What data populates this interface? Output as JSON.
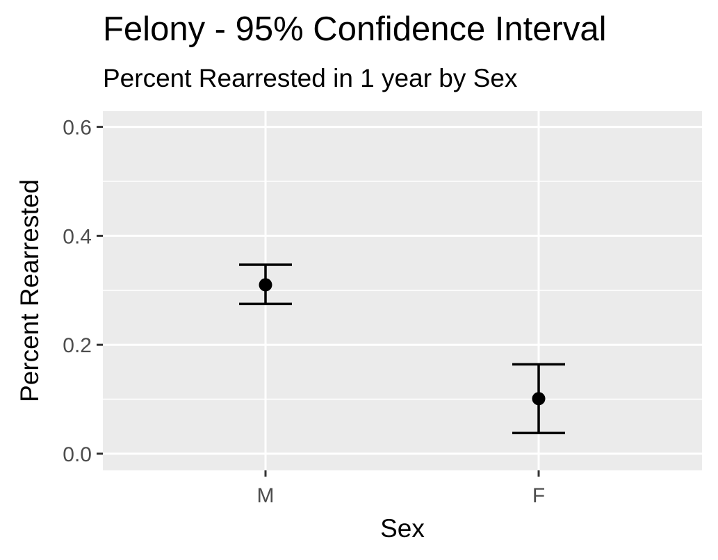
{
  "chart_data": {
    "type": "errorbar",
    "title": "Felony - 95% Confidence Interval",
    "subtitle": "Percent Rearrested in 1 year by Sex",
    "xlabel": "Sex",
    "ylabel": "Percent Rearrested",
    "categories": [
      "M",
      "F"
    ],
    "points": [
      {
        "category": "M",
        "estimate": 0.31,
        "lower": 0.275,
        "upper": 0.347
      },
      {
        "category": "F",
        "estimate": 0.101,
        "lower": 0.038,
        "upper": 0.164
      }
    ],
    "ylim": [
      -0.03,
      0.63
    ],
    "yticks": [
      0.0,
      0.2,
      0.4,
      0.6
    ],
    "ytick_labels": [
      "0.0",
      "0.2",
      "0.4",
      "0.6"
    ],
    "grid": true,
    "panel_color": "#ebebeb",
    "grid_color": "#ffffff",
    "mark_color": "#000000"
  }
}
